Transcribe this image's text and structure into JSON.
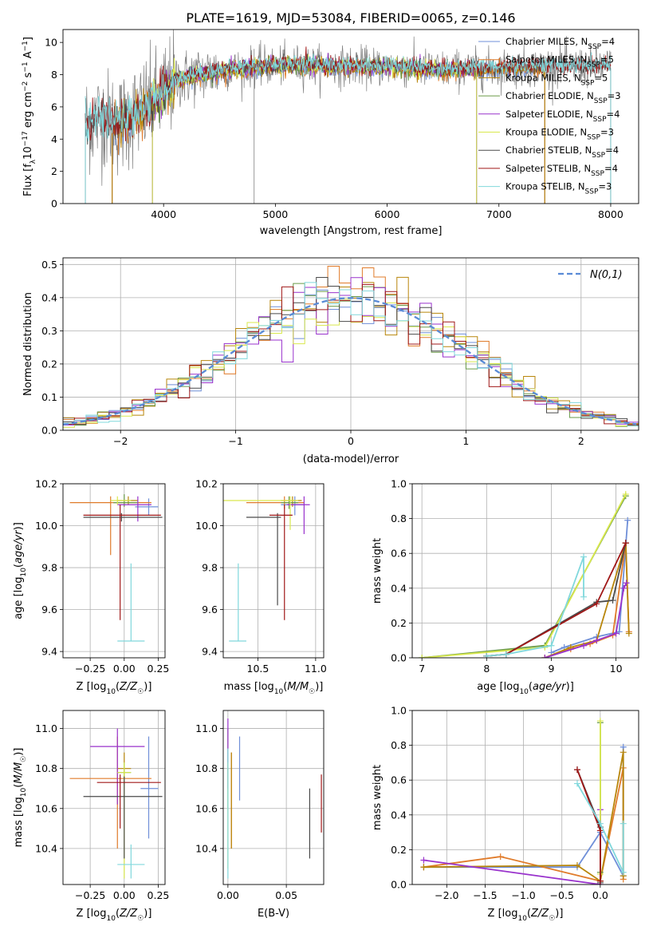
{
  "figure_title": "PLATE=1619, MJD=53084, FIBERID=0065, z=0.146",
  "colors": {
    "Chabrier MILES": "#6f8fd8",
    "Salpeter MILES": "#e07b2a",
    "Kroupa MILES": "#b8860b",
    "Chabrier ELODIE": "#6a9a48",
    "Salpeter ELODIE": "#9932cc",
    "Kroupa ELODIE": "#d9e84d",
    "Chabrier STELIB": "#4a4a4a",
    "Salpeter STELIB": "#a01818",
    "Kroupa STELIB": "#80d8dc",
    "data": "#808080"
  },
  "chart_data": [
    {
      "id": "spectrum",
      "type": "line",
      "title": "",
      "xlabel": "wavelength [Angstrom, rest frame]",
      "ylabel": "Flux [f_λ 10^-17 erg cm^-2 s^-1 A^-1]",
      "xlim": [
        3100,
        8250
      ],
      "ylim": [
        0,
        10.8
      ],
      "xticks": [
        4000,
        5000,
        6000,
        7000,
        8000
      ],
      "yticks": [
        0,
        2,
        4,
        6,
        8,
        10
      ],
      "grid": false,
      "legend_position": "right",
      "continuum_x": [
        3300,
        3450,
        3600,
        3800,
        3950,
        4100,
        4300,
        4500,
        4800,
        5200,
        5600,
        6000,
        6500,
        7000,
        7500,
        8000
      ],
      "continuum_y": [
        5.0,
        5.3,
        4.9,
        5.8,
        6.5,
        7.6,
        8.0,
        8.2,
        8.5,
        8.6,
        8.5,
        8.5,
        8.3,
        8.4,
        8.5,
        8.5
      ],
      "series": [
        {
          "name": "Chabrier MILES",
          "nssp": "4",
          "xmin": 3540,
          "xmax": 7410
        },
        {
          "name": "Salpeter MILES",
          "nssp": "5",
          "xmin": 3540,
          "xmax": 7410
        },
        {
          "name": "Kroupa MILES",
          "nssp": "5",
          "xmin": 3540,
          "xmax": 7410
        },
        {
          "name": "Chabrier ELODIE",
          "nssp": "3",
          "xmin": 3900,
          "xmax": 6800
        },
        {
          "name": "Salpeter ELODIE",
          "nssp": "4",
          "xmin": 3900,
          "xmax": 6800
        },
        {
          "name": "Kroupa ELODIE",
          "nssp": "3",
          "xmin": 3900,
          "xmax": 6800
        },
        {
          "name": "Chabrier STELIB",
          "nssp": "4",
          "xmin": 3300,
          "xmax": 8000
        },
        {
          "name": "Salpeter STELIB",
          "nssp": "4",
          "xmin": 3300,
          "xmax": 8000
        },
        {
          "name": "Kroupa STELIB",
          "nssp": "3",
          "xmin": 3300,
          "xmax": 8000
        }
      ]
    },
    {
      "id": "residuals",
      "type": "step",
      "xlabel": "(data-model)/error",
      "ylabel": "Normed distribution",
      "xlim": [
        -2.5,
        2.5
      ],
      "ylim": [
        0,
        0.52
      ],
      "xticks": [
        -2,
        -1,
        0,
        1,
        2
      ],
      "yticks": [
        0.0,
        0.1,
        0.2,
        0.3,
        0.4,
        0.5
      ],
      "grid": true,
      "legend_position": "top-right",
      "gaussian_label": "N(0,1)",
      "bin_width": 0.1
    },
    {
      "id": "age_vs_Z",
      "type": "errorbar",
      "xlabel": "Z [log10(Z/Z☉)]",
      "ylabel": "age [log10(age/yr)]",
      "xlim": [
        -0.45,
        0.3
      ],
      "ylim": [
        9.37,
        10.2
      ],
      "xticks": [
        -0.25,
        0.0,
        0.25
      ],
      "yticks": [
        9.4,
        9.6,
        9.8,
        10.0,
        10.2
      ],
      "points": [
        {
          "s": "Chabrier MILES",
          "x": 0.18,
          "xlo": 0.08,
          "xhi": 0.25,
          "y": 10.09,
          "ylo": 10.05,
          "yhi": 10.13
        },
        {
          "s": "Salpeter MILES",
          "x": -0.1,
          "xlo": -0.4,
          "xhi": 0.2,
          "y": 10.11,
          "ylo": 9.86,
          "yhi": 10.14
        },
        {
          "s": "Kroupa MILES",
          "x": 0.03,
          "xlo": -0.05,
          "xhi": 0.1,
          "y": 10.12,
          "ylo": 10.1,
          "yhi": 10.14
        },
        {
          "s": "Chabrier ELODIE",
          "x": 0.0,
          "xlo": -0.08,
          "xhi": 0.1,
          "y": 10.11,
          "ylo": 10.09,
          "yhi": 10.15
        },
        {
          "s": "Salpeter ELODIE",
          "x": 0.1,
          "xlo": -0.05,
          "xhi": 0.2,
          "y": 10.1,
          "ylo": 10.02,
          "yhi": 10.14
        },
        {
          "s": "Kroupa ELODIE",
          "x": -0.05,
          "xlo": -0.1,
          "xhi": 0.05,
          "y": 10.12,
          "ylo": 10.1,
          "yhi": 10.14
        },
        {
          "s": "Chabrier STELIB",
          "x": -0.02,
          "xlo": -0.3,
          "xhi": 0.28,
          "y": 10.04,
          "ylo": 10.02,
          "yhi": 10.06
        },
        {
          "s": "Salpeter STELIB",
          "x": -0.03,
          "xlo": -0.3,
          "xhi": 0.27,
          "y": 10.05,
          "ylo": 9.55,
          "yhi": 10.1
        },
        {
          "s": "Kroupa STELIB",
          "x": 0.05,
          "xlo": -0.05,
          "xhi": 0.15,
          "y": 9.45,
          "ylo": 9.45,
          "yhi": 9.82
        }
      ]
    },
    {
      "id": "age_vs_mass",
      "type": "errorbar",
      "xlabel": "mass [log10(M/M☉)]",
      "ylabel": "",
      "xlim": [
        10.2,
        11.07
      ],
      "ylim": [
        9.37,
        10.2
      ],
      "xticks": [
        10.5,
        11.0
      ],
      "yticks": [
        9.4,
        9.6,
        9.8,
        10.0,
        10.2
      ],
      "points": [
        {
          "s": "Chabrier MILES",
          "x": 10.82,
          "xlo": 10.7,
          "xhi": 10.9,
          "y": 10.1,
          "ylo": 10.05,
          "yhi": 10.14
        },
        {
          "s": "Salpeter MILES",
          "x": 10.73,
          "xlo": 10.4,
          "xhi": 10.9,
          "y": 10.11,
          "ylo": 10.08,
          "yhi": 10.14
        },
        {
          "s": "Kroupa MILES",
          "x": 10.8,
          "xlo": 10.7,
          "xhi": 10.88,
          "y": 10.12,
          "ylo": 10.09,
          "yhi": 10.14
        },
        {
          "s": "Chabrier ELODIE",
          "x": 10.77,
          "xlo": 10.7,
          "xhi": 10.85,
          "y": 10.11,
          "ylo": 10.08,
          "yhi": 10.14
        },
        {
          "s": "Salpeter ELODIE",
          "x": 10.9,
          "xlo": 10.75,
          "xhi": 10.95,
          "y": 10.1,
          "ylo": 9.96,
          "yhi": 10.14
        },
        {
          "s": "Kroupa ELODIE",
          "x": 10.78,
          "xlo": 10.2,
          "xhi": 10.85,
          "y": 10.12,
          "ylo": 9.98,
          "yhi": 10.14
        },
        {
          "s": "Chabrier STELIB",
          "x": 10.67,
          "xlo": 10.4,
          "xhi": 10.7,
          "y": 10.04,
          "ylo": 9.62,
          "yhi": 10.06
        },
        {
          "s": "Salpeter STELIB",
          "x": 10.73,
          "xlo": 10.6,
          "xhi": 10.8,
          "y": 10.05,
          "ylo": 9.55,
          "yhi": 10.1
        },
        {
          "s": "Kroupa STELIB",
          "x": 10.33,
          "xlo": 10.25,
          "xhi": 10.4,
          "y": 9.45,
          "ylo": 9.45,
          "yhi": 9.82
        }
      ]
    },
    {
      "id": "massweight_vs_age",
      "type": "line",
      "xlabel": "age [log10(age/yr)]",
      "ylabel": "mass weight",
      "xlim": [
        6.85,
        10.35
      ],
      "ylim": [
        0,
        1.0
      ],
      "xticks": [
        7,
        8,
        9,
        10
      ],
      "yticks": [
        0.0,
        0.2,
        0.4,
        0.6,
        0.8,
        1.0
      ],
      "series": [
        {
          "s": "Chabrier MILES",
          "x": [
            9.0,
            9.2,
            9.7,
            10.05,
            10.18
          ],
          "y": [
            0.03,
            0.06,
            0.12,
            0.15,
            0.79
          ]
        },
        {
          "s": "Salpeter MILES",
          "x": [
            8.9,
            9.3,
            9.6,
            9.95,
            10.15,
            10.2
          ],
          "y": [
            0.0,
            0.05,
            0.08,
            0.13,
            0.66,
            0.15
          ]
        },
        {
          "s": "Kroupa MILES",
          "x": [
            8.9,
            9.3,
            9.7,
            10.15,
            10.2
          ],
          "y": [
            0.0,
            0.06,
            0.1,
            0.66,
            0.14
          ]
        },
        {
          "s": "Chabrier ELODIE",
          "x": [
            7.0,
            8.9,
            10.15
          ],
          "y": [
            0.0,
            0.07,
            0.93
          ]
        },
        {
          "s": "Salpeter ELODIE",
          "x": [
            8.9,
            9.5,
            9.7,
            10.0,
            10.12,
            10.16
          ],
          "y": [
            0.0,
            0.07,
            0.1,
            0.14,
            0.4,
            0.43
          ]
        },
        {
          "s": "Kroupa ELODIE",
          "x": [
            7.0,
            8.9,
            10.15
          ],
          "y": [
            0.0,
            0.06,
            0.94
          ]
        },
        {
          "s": "Chabrier STELIB",
          "x": [
            8.0,
            8.3,
            9.7,
            9.95,
            10.15
          ],
          "y": [
            0.01,
            0.02,
            0.32,
            0.33,
            0.66
          ]
        },
        {
          "s": "Salpeter STELIB",
          "x": [
            8.0,
            8.3,
            9.7,
            10.15
          ],
          "y": [
            0.01,
            0.02,
            0.31,
            0.66
          ]
        },
        {
          "s": "Kroupa STELIB",
          "x": [
            8.0,
            8.3,
            9.0,
            9.5,
            9.5
          ],
          "y": [
            0.01,
            0.02,
            0.07,
            0.58,
            0.35
          ]
        }
      ]
    },
    {
      "id": "mass_vs_Z",
      "type": "errorbar",
      "xlabel": "Z [log10(Z/Z☉)]",
      "ylabel": "mass [log10(M/M☉)]",
      "xlim": [
        -0.45,
        0.3
      ],
      "ylim": [
        10.22,
        11.09
      ],
      "xticks": [
        -0.25,
        0.0,
        0.25
      ],
      "yticks": [
        10.4,
        10.6,
        10.8,
        11.0
      ],
      "points": [
        {
          "s": "Chabrier MILES",
          "x": 0.18,
          "xlo": 0.12,
          "xhi": 0.25,
          "y": 10.7,
          "ylo": 10.45,
          "yhi": 10.96
        },
        {
          "s": "Salpeter MILES",
          "x": -0.05,
          "xlo": -0.4,
          "xhi": 0.2,
          "y": 10.75,
          "ylo": 10.4,
          "yhi": 10.96
        },
        {
          "s": "Kroupa MILES",
          "x": 0.0,
          "xlo": -0.05,
          "xhi": 0.05,
          "y": 10.8,
          "ylo": 10.75,
          "yhi": 10.88
        },
        {
          "s": "Chabrier ELODIE",
          "x": 0.0,
          "xlo": -0.05,
          "xhi": 0.05,
          "y": 10.78,
          "ylo": 10.72,
          "yhi": 10.83
        },
        {
          "s": "Salpeter ELODIE",
          "x": -0.05,
          "xlo": -0.25,
          "xhi": 0.15,
          "y": 10.91,
          "ylo": 10.62,
          "yhi": 11.0
        },
        {
          "s": "Kroupa ELODIE",
          "x": 0.0,
          "xlo": -0.05,
          "xhi": 0.05,
          "y": 10.78,
          "ylo": 10.25,
          "yhi": 10.83
        },
        {
          "s": "Chabrier STELIB",
          "x": 0.0,
          "xlo": -0.3,
          "xhi": 0.28,
          "y": 10.66,
          "ylo": 10.35,
          "yhi": 10.76
        },
        {
          "s": "Salpeter STELIB",
          "x": -0.03,
          "xlo": -0.2,
          "xhi": 0.27,
          "y": 10.73,
          "ylo": 10.5,
          "yhi": 10.77
        },
        {
          "s": "Kroupa STELIB",
          "x": 0.05,
          "xlo": -0.05,
          "xhi": 0.15,
          "y": 10.32,
          "ylo": 10.25,
          "yhi": 10.42
        }
      ]
    },
    {
      "id": "mass_vs_ebv",
      "type": "errorbar",
      "xlabel": "E(B-V)",
      "ylabel": "",
      "xlim": [
        -0.004,
        0.082
      ],
      "ylim": [
        10.22,
        11.09
      ],
      "xticks": [
        0.0,
        0.05
      ],
      "yticks": [
        10.4,
        10.6,
        10.8,
        11.0
      ],
      "points": [
        {
          "s": "Chabrier MILES",
          "x": 0.01,
          "y": 10.8,
          "ylo": 10.64,
          "yhi": 10.96
        },
        {
          "s": "Salpeter MILES",
          "x": 0.003,
          "y": 10.8,
          "ylo": 10.4,
          "yhi": 10.88
        },
        {
          "s": "Kroupa MILES",
          "x": 0.003,
          "y": 10.8,
          "ylo": 10.4,
          "yhi": 10.88
        },
        {
          "s": "Chabrier ELODIE",
          "x": 0.0,
          "y": 10.8,
          "ylo": 10.6,
          "yhi": 11.0
        },
        {
          "s": "Salpeter ELODIE",
          "x": 0.0,
          "y": 10.9,
          "ylo": 10.7,
          "yhi": 11.05
        },
        {
          "s": "Kroupa ELODIE",
          "x": 0.0,
          "y": 10.6,
          "ylo": 10.3,
          "yhi": 10.83
        },
        {
          "s": "Chabrier STELIB",
          "x": 0.07,
          "y": 10.5,
          "ylo": 10.35,
          "yhi": 10.7
        },
        {
          "s": "Salpeter STELIB",
          "x": 0.08,
          "y": 10.62,
          "ylo": 10.48,
          "yhi": 10.77
        },
        {
          "s": "Kroupa STELIB",
          "x": 0.0,
          "y": 10.45,
          "ylo": 10.25,
          "yhi": 10.9
        }
      ]
    },
    {
      "id": "massweight_vs_Z",
      "type": "line",
      "xlabel": "Z [log10(Z/Z☉)]",
      "ylabel": "mass weight",
      "xlim": [
        -2.45,
        0.5
      ],
      "ylim": [
        0,
        1.0
      ],
      "xticks": [
        -2.0,
        -1.5,
        -1.0,
        -0.5,
        0.0
      ],
      "yticks": [
        0.0,
        0.2,
        0.4,
        0.6,
        0.8,
        1.0
      ],
      "series": [
        {
          "s": "Chabrier MILES",
          "x": [
            -2.3,
            -0.3,
            0.0,
            0.3,
            0.3
          ],
          "y": [
            0.1,
            0.1,
            0.3,
            0.05,
            0.79
          ]
        },
        {
          "s": "Salpeter MILES",
          "x": [
            -2.3,
            -1.3,
            0.0,
            0.3,
            0.3
          ],
          "y": [
            0.1,
            0.16,
            0.02,
            0.67,
            0.03
          ]
        },
        {
          "s": "Kroupa MILES",
          "x": [
            -2.3,
            -0.3,
            0.0,
            0.3,
            0.3
          ],
          "y": [
            0.1,
            0.11,
            0.02,
            0.76,
            0.05
          ]
        },
        {
          "s": "Chabrier ELODIE",
          "x": [
            0.0,
            0.0
          ],
          "y": [
            0.93,
            0.07
          ]
        },
        {
          "s": "Salpeter ELODIE",
          "x": [
            -2.3,
            0.0,
            0.0
          ],
          "y": [
            0.14,
            0.0,
            0.43
          ]
        },
        {
          "s": "Kroupa ELODIE",
          "x": [
            0.0,
            0.0
          ],
          "y": [
            0.94,
            0.06
          ]
        },
        {
          "s": "Chabrier STELIB",
          "x": [
            -0.3,
            0.0,
            0.0
          ],
          "y": [
            0.66,
            0.33,
            0.01
          ]
        },
        {
          "s": "Salpeter STELIB",
          "x": [
            -0.3,
            0.0,
            0.0
          ],
          "y": [
            0.66,
            0.31,
            0.02
          ]
        },
        {
          "s": "Kroupa STELIB",
          "x": [
            -0.3,
            0.0,
            0.3,
            0.3
          ],
          "y": [
            0.58,
            0.35,
            0.07,
            0.35
          ]
        }
      ]
    }
  ]
}
